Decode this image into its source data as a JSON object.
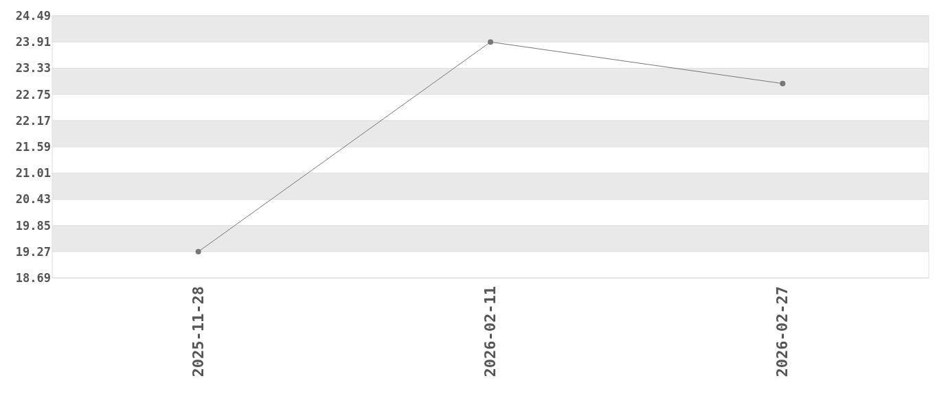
{
  "chart_data": {
    "type": "line",
    "categories": [
      "2025-11-28",
      "2026-02-11",
      "2026-02-27"
    ],
    "series": [
      {
        "color": "#777777",
        "values": [
          19.27,
          23.91,
          22.99
        ]
      }
    ],
    "ylim": [
      18.69,
      24.49
    ],
    "yticks": [
      18.69,
      19.27,
      19.85,
      20.43,
      21.01,
      21.59,
      22.17,
      22.75,
      23.33,
      23.91,
      24.49
    ],
    "grid": "y",
    "marker": "circle",
    "line_style": "solid"
  }
}
